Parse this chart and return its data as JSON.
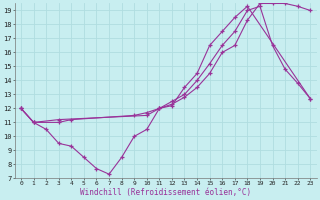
{
  "background_color": "#c8eef0",
  "grid_color": "#b0dde0",
  "line_color": "#993399",
  "xlim": [
    -0.5,
    23.5
  ],
  "ylim": [
    7,
    19.5
  ],
  "xticks": [
    0,
    1,
    2,
    3,
    4,
    5,
    6,
    7,
    8,
    9,
    10,
    11,
    12,
    13,
    14,
    15,
    16,
    17,
    18,
    19,
    20,
    21,
    22,
    23
  ],
  "yticks": [
    7,
    8,
    9,
    10,
    11,
    12,
    13,
    14,
    15,
    16,
    17,
    18,
    19
  ],
  "xlabel": "Windchill (Refroidissement éolien,°C)",
  "series": [
    {
      "x": [
        0,
        1,
        2,
        3,
        4,
        5,
        6,
        7,
        8,
        9,
        10,
        11,
        12,
        13,
        14,
        15,
        16,
        17,
        18,
        23
      ],
      "y": [
        12,
        11,
        10.5,
        9.5,
        9.3,
        8.5,
        7.7,
        7.3,
        8.5,
        10,
        10.5,
        12,
        12.2,
        13.5,
        14.5,
        16.5,
        17.5,
        18.5,
        19.3,
        12.7
      ]
    },
    {
      "x": [
        0,
        1,
        3,
        4,
        9,
        10,
        11,
        12,
        13,
        14,
        15,
        16,
        17,
        18,
        19,
        20,
        21,
        22,
        23
      ],
      "y": [
        12,
        11,
        11,
        11.2,
        11.5,
        11.7,
        12,
        12.3,
        12.8,
        13.5,
        14.5,
        16,
        16.5,
        18.3,
        19.5,
        19.5,
        19.5,
        19.3,
        19.0
      ]
    },
    {
      "x": [
        0,
        1,
        3,
        10,
        11,
        12,
        13,
        14,
        15,
        16,
        17,
        18,
        19,
        20,
        21,
        22,
        23
      ],
      "y": [
        12,
        11,
        11.2,
        11.5,
        12,
        12.5,
        13,
        14,
        15.2,
        16.5,
        17.5,
        19.0,
        19.3,
        16.5,
        14.8,
        13.8,
        12.7
      ]
    }
  ]
}
